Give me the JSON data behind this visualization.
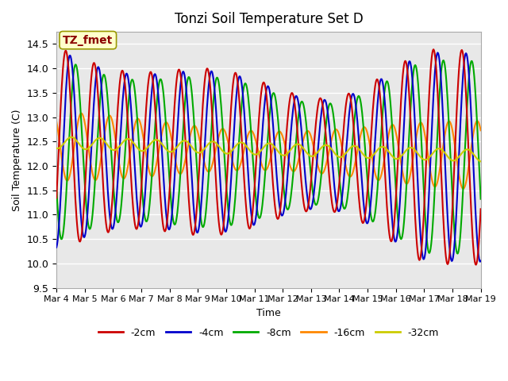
{
  "title": "Tonzi Soil Temperature Set D",
  "xlabel": "Time",
  "ylabel": "Soil Temperature (C)",
  "ylim": [
    9.5,
    14.75
  ],
  "annotation": "TZ_fmet",
  "annotation_color": "#8B0000",
  "annotation_bg": "#FFFFCC",
  "plot_bg": "#E8E8E8",
  "series": {
    "-2cm": {
      "color": "#CC0000",
      "lw": 1.5
    },
    "-4cm": {
      "color": "#0000CC",
      "lw": 1.5
    },
    "-8cm": {
      "color": "#00AA00",
      "lw": 1.5
    },
    "-16cm": {
      "color": "#FF8800",
      "lw": 1.5
    },
    "-32cm": {
      "color": "#CCCC00",
      "lw": 1.5
    }
  },
  "xtick_labels": [
    "Mar 4",
    "Mar 5",
    "Mar 6",
    "Mar 7",
    "Mar 8",
    "Mar 9",
    "Mar 10",
    "Mar 11",
    "Mar 12",
    "Mar 13",
    "Mar 14",
    "Mar 15",
    "Mar 16",
    "Mar 17",
    "Mar 18",
    "Mar 19"
  ],
  "legend_order": [
    "-2cm",
    "-4cm",
    "-8cm",
    "-16cm",
    "-32cm"
  ]
}
